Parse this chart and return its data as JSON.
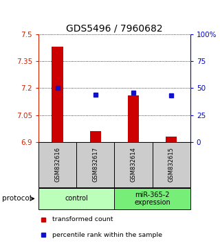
{
  "title": "GDS5496 / 7960682",
  "samples": [
    "GSM832616",
    "GSM832617",
    "GSM832614",
    "GSM832615"
  ],
  "transformed_counts": [
    7.43,
    6.96,
    7.16,
    6.93
  ],
  "percentile_ranks": [
    50,
    44,
    46,
    43
  ],
  "ylim_left": [
    6.9,
    7.5
  ],
  "yticks_left": [
    6.9,
    7.05,
    7.2,
    7.35,
    7.5
  ],
  "yticks_right": [
    0,
    25,
    50,
    75,
    100
  ],
  "bar_color": "#cc0000",
  "dot_color": "#1111cc",
  "bar_bottom": 6.9,
  "groups": [
    {
      "label": "control",
      "indices": [
        0,
        1
      ],
      "color": "#bbffbb"
    },
    {
      "label": "miR-365-2\nexpression",
      "indices": [
        2,
        3
      ],
      "color": "#77ee77"
    }
  ],
  "protocol_label": "protocol",
  "legend_bar_label": "transformed count",
  "legend_dot_label": "percentile rank within the sample",
  "left_axis_color": "#cc2200",
  "right_axis_color": "#0000cc",
  "sample_box_color": "#cccccc",
  "title_fontsize": 10,
  "tick_fontsize": 7.5,
  "bar_width": 0.3
}
